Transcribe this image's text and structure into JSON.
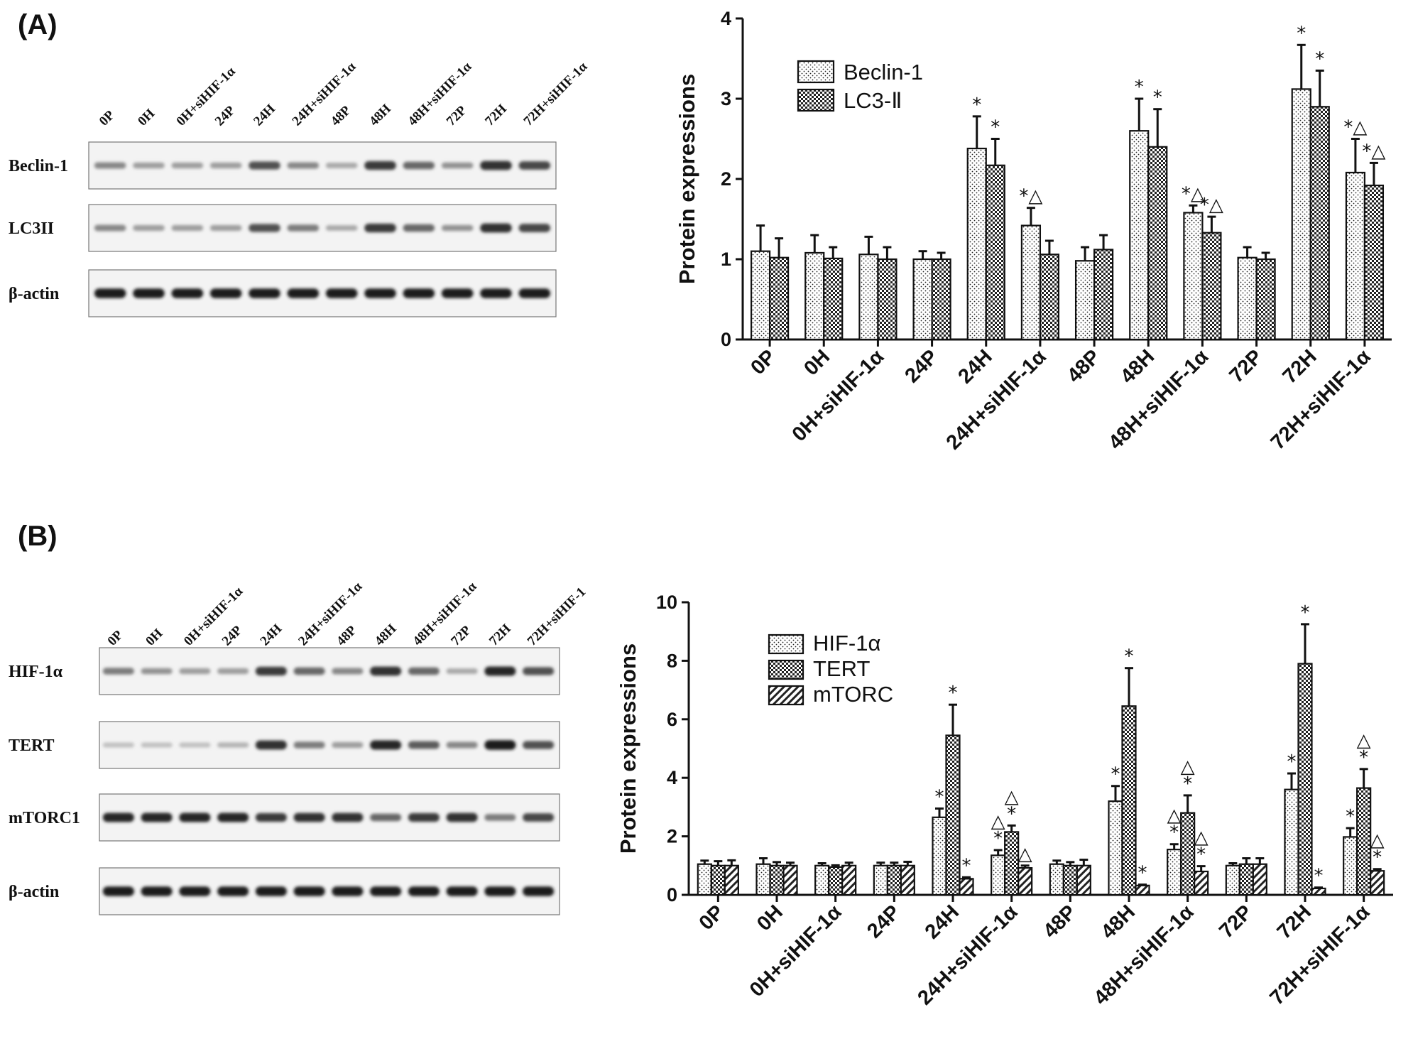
{
  "panels": [
    {
      "label": "(A)",
      "blot": {
        "lanes": [
          "0P",
          "0H",
          "0H+siHIF-1α",
          "24P",
          "24H",
          "24H+siHIF-1α",
          "48P",
          "48H",
          "48H+siHIF-1α",
          "72P",
          "72H",
          "72H+siHIF-1α"
        ],
        "rows": [
          {
            "name": "Beclin-1",
            "intensity": [
              0.45,
              0.35,
              0.35,
              0.35,
              0.7,
              0.45,
              0.3,
              0.8,
              0.6,
              0.4,
              0.85,
              0.75
            ]
          },
          {
            "name": "LC3II",
            "intensity": [
              0.45,
              0.35,
              0.35,
              0.35,
              0.7,
              0.5,
              0.3,
              0.8,
              0.6,
              0.4,
              0.85,
              0.75
            ]
          },
          {
            "name": "β-actin",
            "intensity": [
              0.95,
              0.95,
              0.95,
              0.95,
              0.95,
              0.95,
              0.95,
              0.95,
              0.95,
              0.95,
              0.95,
              0.95
            ]
          }
        ]
      }
    },
    {
      "label": "(B)",
      "blot": {
        "lanes": [
          "0P",
          "0H",
          "0H+siHIF-1α",
          "24P",
          "24H",
          "24H+siHIF-1α",
          "48P",
          "48H",
          "48H+siHIF-1α",
          "72P",
          "72H",
          "72H+siHIF-1"
        ],
        "rows": [
          {
            "name": "HIF-1α",
            "intensity": [
              0.5,
              0.4,
              0.35,
              0.35,
              0.8,
              0.6,
              0.45,
              0.85,
              0.6,
              0.3,
              0.9,
              0.7
            ]
          },
          {
            "name": "TERT",
            "intensity": [
              0.2,
              0.2,
              0.2,
              0.25,
              0.85,
              0.5,
              0.35,
              0.9,
              0.65,
              0.45,
              0.95,
              0.7
            ]
          },
          {
            "name": "mTORC1",
            "intensity": [
              0.9,
              0.9,
              0.9,
              0.9,
              0.8,
              0.85,
              0.85,
              0.6,
              0.8,
              0.85,
              0.5,
              0.75
            ]
          },
          {
            "name": "β-actin",
            "intensity": [
              0.95,
              0.95,
              0.95,
              0.95,
              0.95,
              0.95,
              0.95,
              0.95,
              0.95,
              0.95,
              0.95,
              0.95
            ]
          }
        ]
      }
    }
  ],
  "chart_data": [
    {
      "type": "bar",
      "panel": "(A)",
      "ylabel": "Protein expressions",
      "xlabel": "",
      "ylim": [
        0,
        4
      ],
      "yticks": [
        0,
        1,
        2,
        3,
        4
      ],
      "legend_position": "top-left",
      "categories": [
        "0P",
        "0H",
        "0H+siHIF-1α",
        "24P",
        "24H",
        "24H+siHIF-1α",
        "48P",
        "48H",
        "48H+siHIF-1α",
        "72P",
        "72H",
        "72H+siHIF-1α"
      ],
      "series": [
        {
          "name": "Beclin-1",
          "pattern": "dots",
          "values": [
            1.1,
            1.08,
            1.06,
            1.0,
            2.38,
            1.42,
            0.98,
            2.6,
            1.58,
            1.02,
            3.12,
            2.08
          ],
          "errors": [
            0.32,
            0.22,
            0.22,
            0.1,
            0.4,
            0.22,
            0.17,
            0.4,
            0.09,
            0.13,
            0.55,
            0.42
          ]
        },
        {
          "name": "LC3-Ⅱ",
          "pattern": "checker",
          "values": [
            1.02,
            1.01,
            1.0,
            1.0,
            2.17,
            1.06,
            1.12,
            2.4,
            1.33,
            1.0,
            2.9,
            1.92
          ],
          "errors": [
            0.24,
            0.14,
            0.15,
            0.08,
            0.33,
            0.17,
            0.18,
            0.47,
            0.2,
            0.08,
            0.45,
            0.28
          ]
        }
      ],
      "annotations": [
        [
          "",
          "",
          "",
          "",
          "*",
          "*△",
          "",
          "*",
          "*△",
          "",
          "*",
          "*△"
        ],
        [
          "",
          "",
          "",
          "",
          "*",
          "",
          "",
          "*",
          "*△",
          "",
          "*",
          "*△"
        ]
      ]
    },
    {
      "type": "bar",
      "panel": "(B)",
      "ylabel": "Protein expressions",
      "xlabel": "",
      "ylim": [
        0,
        10
      ],
      "yticks": [
        0,
        2,
        4,
        6,
        8,
        10
      ],
      "legend_position": "top-left",
      "categories": [
        "0P",
        "0H",
        "0H+siHIF-1α",
        "24P",
        "24H",
        "24H+siHIF-1α",
        "48P",
        "48H",
        "48H+siHIF-1α",
        "72P",
        "72H",
        "72H+siHIF-1α"
      ],
      "series": [
        {
          "name": "HIF-1α",
          "pattern": "dots",
          "values": [
            1.05,
            1.05,
            1.0,
            1.0,
            2.65,
            1.35,
            1.05,
            3.2,
            1.55,
            1.0,
            3.6,
            1.98
          ],
          "errors": [
            0.12,
            0.2,
            0.08,
            0.1,
            0.3,
            0.18,
            0.12,
            0.52,
            0.18,
            0.08,
            0.55,
            0.3
          ]
        },
        {
          "name": "TERT",
          "pattern": "checker",
          "values": [
            1.0,
            1.0,
            0.95,
            1.0,
            5.45,
            2.15,
            1.0,
            6.45,
            2.8,
            1.05,
            7.9,
            3.65
          ],
          "errors": [
            0.15,
            0.12,
            0.06,
            0.1,
            1.05,
            0.22,
            0.12,
            1.3,
            0.6,
            0.2,
            1.35,
            0.65
          ]
        },
        {
          "name": "mTORC",
          "pattern": "diagonal",
          "values": [
            1.0,
            1.0,
            1.0,
            1.0,
            0.55,
            0.92,
            1.0,
            0.32,
            0.8,
            1.05,
            0.22,
            0.82
          ],
          " errors": [],
          "errors": [
            0.18,
            0.1,
            0.1,
            0.13,
            0.05,
            0.08,
            0.2,
            0.03,
            0.18,
            0.2,
            0.03,
            0.06
          ]
        }
      ],
      "annotations": [
        [
          "",
          "",
          "",
          "",
          "*",
          "△*",
          "",
          "*",
          "△*",
          "",
          "*",
          "*"
        ],
        [
          "",
          "",
          "",
          "",
          "*",
          "△*",
          "",
          "*",
          "△*",
          "",
          "*",
          "△*"
        ],
        [
          "",
          "",
          "",
          "",
          "*",
          "△",
          "",
          "*",
          "△*",
          "",
          "*",
          "△*"
        ]
      ]
    }
  ]
}
